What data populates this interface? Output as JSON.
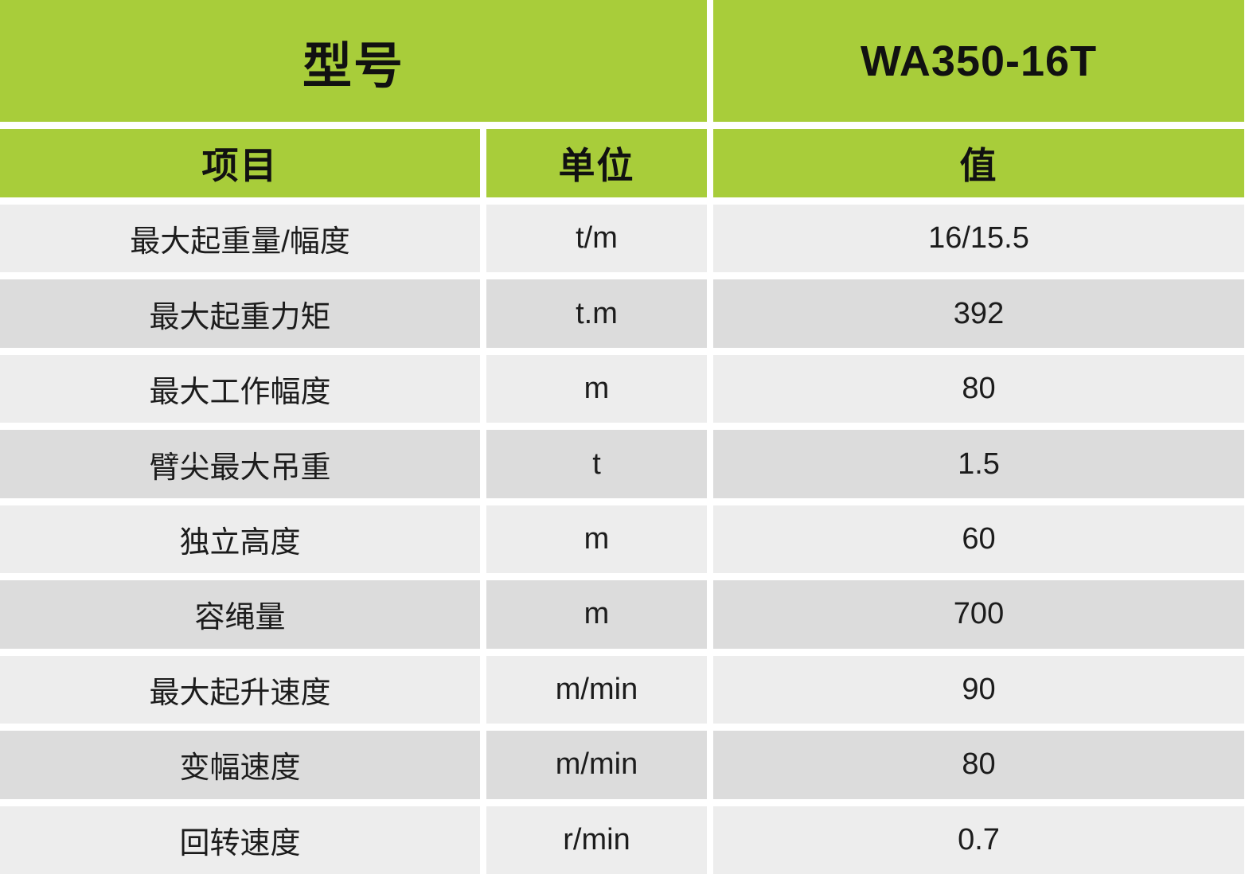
{
  "table": {
    "model_header": "型号",
    "model_value": "WA350-16T",
    "columns": {
      "item": "项目",
      "unit": "单位",
      "value": "值"
    },
    "rows": [
      {
        "item": "最大起重量/幅度",
        "unit": "t/m",
        "value": "16/15.5"
      },
      {
        "item": "最大起重力矩",
        "unit": "t.m",
        "value": "392"
      },
      {
        "item": "最大工作幅度",
        "unit": "m",
        "value": "80"
      },
      {
        "item": "臂尖最大吊重",
        "unit": "t",
        "value": "1.5"
      },
      {
        "item": "独立高度",
        "unit": "m",
        "value": "60"
      },
      {
        "item": "容绳量",
        "unit": "m",
        "value": "700"
      },
      {
        "item": "最大起升速度",
        "unit": "m/min",
        "value": "90"
      },
      {
        "item": "变幅速度",
        "unit": "m/min",
        "value": "80"
      },
      {
        "item": "回转速度",
        "unit": "r/min",
        "value": "0.7"
      }
    ],
    "colors": {
      "header_green": "#a8cd3a",
      "row_light": "#ededed",
      "row_dark": "#dcdcdc",
      "text": "#111111"
    }
  }
}
